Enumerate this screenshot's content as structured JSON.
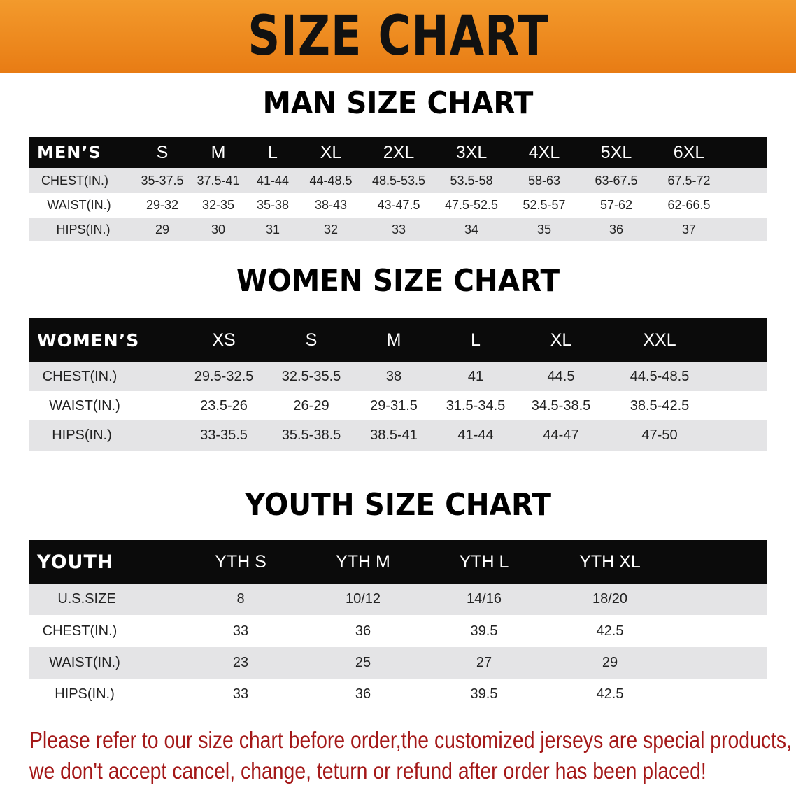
{
  "banner_title": "SIZE CHART",
  "accent_color": "#e87c14",
  "note_color": "#a41818",
  "men": {
    "title": "MAN SIZE CHART",
    "headers": [
      "MEN’S",
      "S",
      "M",
      "L",
      "XL",
      "2XL",
      "3XL",
      "4XL",
      "5XL",
      "6XL"
    ],
    "rows": [
      [
        "CHEST(IN.)",
        "35-37.5",
        "37.5-41",
        "41-44",
        "44-48.5",
        "48.5-53.5",
        "53.5-58",
        "58-63",
        "63-67.5",
        "67.5-72"
      ],
      [
        "WAIST(IN.)",
        "29-32",
        "32-35",
        "35-38",
        "38-43",
        "43-47.5",
        "47.5-52.5",
        "52.5-57",
        "57-62",
        "62-66.5"
      ],
      [
        "HIPS(IN.)",
        "29",
        "30",
        "31",
        "32",
        "33",
        "34",
        "35",
        "36",
        "37"
      ]
    ]
  },
  "women": {
    "title": "WOMEN SIZE CHART",
    "headers": [
      "WOMEN’S",
      "XS",
      "S",
      "M",
      "L",
      "XL",
      "XXL"
    ],
    "rows": [
      [
        "CHEST(IN.)",
        "29.5-32.5",
        "32.5-35.5",
        "38",
        "41",
        "44.5",
        "44.5-48.5"
      ],
      [
        "WAIST(IN.)",
        "23.5-26",
        "26-29",
        "29-31.5",
        "31.5-34.5",
        "34.5-38.5",
        "38.5-42.5"
      ],
      [
        "HIPS(IN.)",
        "33-35.5",
        "35.5-38.5",
        "38.5-41",
        "41-44",
        "44-47",
        "47-50"
      ]
    ]
  },
  "youth": {
    "title": "YOUTH SIZE CHART",
    "headers": [
      "YOUTH",
      "YTH S",
      "YTH M",
      "YTH L",
      "YTH XL"
    ],
    "rows": [
      [
        "U.S.SIZE",
        "8",
        "10/12",
        "14/16",
        "18/20"
      ],
      [
        "CHEST(IN.)",
        "33",
        "36",
        "39.5",
        "42.5"
      ],
      [
        "WAIST(IN.)",
        "23",
        "25",
        "27",
        "29"
      ],
      [
        "HIPS(IN.)",
        "33",
        "36",
        "39.5",
        "42.5"
      ]
    ]
  },
  "note": {
    "line1": "Please refer to our size chart before order,the customized jerseys are special products,",
    "line2": "we don't accept cancel, change, teturn or refund after order has been placed!"
  }
}
